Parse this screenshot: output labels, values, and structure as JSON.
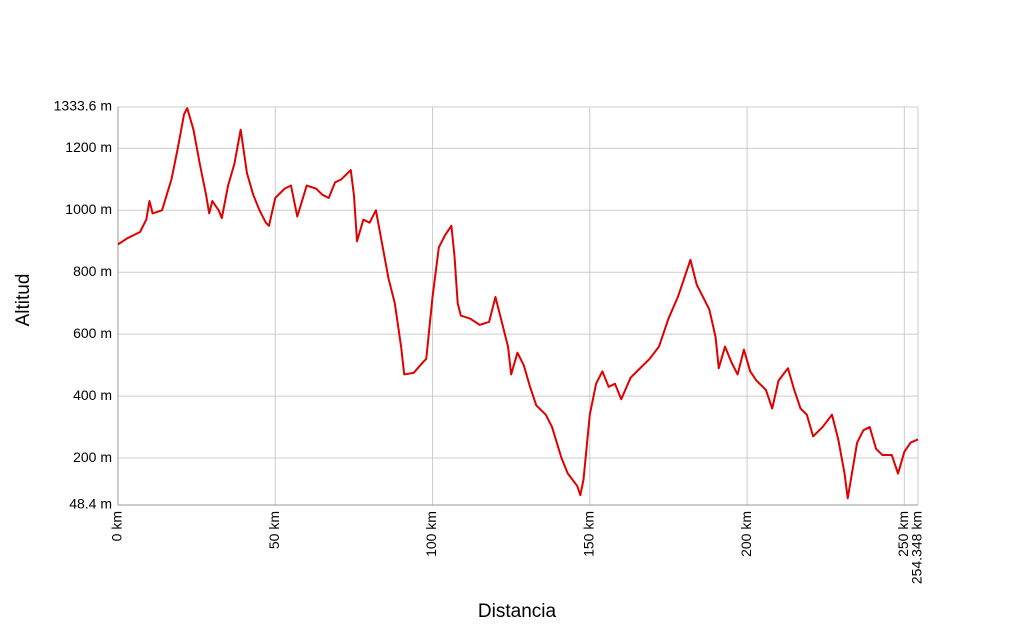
{
  "chart_data": {
    "type": "line",
    "xlabel": "Distancia",
    "ylabel": "Altitud",
    "x": [
      0,
      3,
      7,
      9,
      10,
      11,
      14,
      17,
      19,
      21,
      22,
      24,
      26,
      28,
      29,
      30,
      32,
      33,
      35,
      37,
      39,
      41,
      43,
      45,
      47,
      48,
      50,
      53,
      55,
      57,
      60,
      63,
      65,
      67,
      69,
      71,
      73,
      74,
      75,
      76,
      78,
      80,
      82,
      84,
      86,
      88,
      90,
      91,
      94,
      97,
      98,
      100,
      102,
      104,
      106,
      107,
      108,
      109,
      112,
      115,
      118,
      120,
      122,
      124,
      125,
      127,
      129,
      131,
      133,
      136,
      138,
      141,
      143,
      146,
      147,
      148,
      150,
      152,
      154,
      156,
      158,
      160,
      163,
      166,
      169,
      172,
      175,
      178,
      180,
      182,
      184,
      186,
      188,
      190,
      191,
      193,
      195,
      197,
      199,
      201,
      203,
      206,
      208,
      210,
      213,
      215,
      217,
      219,
      221,
      224,
      227,
      229,
      231,
      232,
      233,
      235,
      237,
      239,
      241,
      243,
      246,
      248,
      250,
      252,
      254.348
    ],
    "series": [
      {
        "name": "Altitud",
        "color": "#e00000",
        "values": [
          890,
          910,
          930,
          970,
          1030,
          990,
          1000,
          1100,
          1200,
          1310,
          1330,
          1260,
          1150,
          1050,
          990,
          1030,
          1000,
          975,
          1080,
          1150,
          1260,
          1120,
          1050,
          1000,
          960,
          950,
          1040,
          1070,
          1080,
          980,
          1080,
          1070,
          1050,
          1040,
          1090,
          1100,
          1120,
          1130,
          1050,
          900,
          970,
          960,
          1000,
          890,
          780,
          700,
          560,
          470,
          475,
          510,
          520,
          720,
          880,
          920,
          950,
          850,
          700,
          660,
          650,
          630,
          640,
          720,
          640,
          560,
          470,
          540,
          500,
          430,
          370,
          340,
          300,
          200,
          150,
          110,
          80,
          130,
          340,
          440,
          480,
          430,
          440,
          390,
          460,
          490,
          520,
          560,
          650,
          720,
          780,
          840,
          760,
          720,
          680,
          590,
          490,
          560,
          510,
          470,
          550,
          480,
          450,
          420,
          360,
          450,
          490,
          420,
          360,
          340,
          270,
          300,
          340,
          260,
          150,
          70,
          130,
          250,
          290,
          300,
          230,
          210,
          210,
          150,
          220,
          250,
          260
        ]
      }
    ],
    "xlim": [
      0,
      254.348
    ],
    "xticks": [
      {
        "value": 0,
        "label": "0 km"
      },
      {
        "value": 50,
        "label": "50 km"
      },
      {
        "value": 100,
        "label": "100 km"
      },
      {
        "value": 150,
        "label": "150 km"
      },
      {
        "value": 200,
        "label": "200 km"
      },
      {
        "value": 250,
        "label": "250 km"
      },
      {
        "value": 254.348,
        "label": "254.348 km"
      }
    ],
    "ylim": [
      48.4,
      1333.6
    ],
    "yticks": [
      {
        "value": 48.4,
        "label": "48.4 m"
      },
      {
        "value": 200,
        "label": "200 m"
      },
      {
        "value": 400,
        "label": "400 m"
      },
      {
        "value": 600,
        "label": "600 m"
      },
      {
        "value": 800,
        "label": "800 m"
      },
      {
        "value": 1000,
        "label": "1000 m"
      },
      {
        "value": 1200,
        "label": "1200 m"
      },
      {
        "value": 1333.6,
        "label": "1333.6 m"
      }
    ],
    "grid": true
  }
}
